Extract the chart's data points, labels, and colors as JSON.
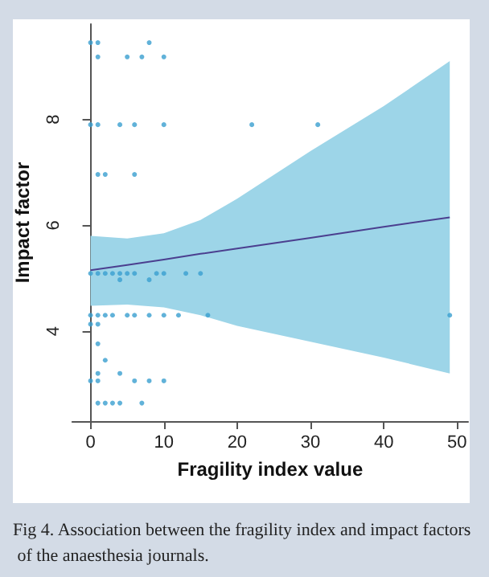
{
  "chart_data": {
    "type": "scatter",
    "xlabel": "Fragility index value",
    "ylabel": "Impact factor",
    "xlim": [
      -2.5,
      51.5
    ],
    "ylim": [
      2.3,
      9.8
    ],
    "xticks": [
      0,
      10,
      20,
      30,
      40,
      50
    ],
    "yticks": [
      4,
      6,
      8
    ],
    "grid": false,
    "marker": "circle",
    "annotations": [
      "Fig 4. Association between the fragility index and impact factors of the anaesthesia journals."
    ],
    "series": [
      {
        "color": "#3a9fd0",
        "x": [
          0,
          1,
          8,
          1,
          5,
          7,
          10,
          0,
          1,
          4,
          6,
          10,
          22,
          31,
          1,
          2,
          6,
          0,
          1,
          2,
          3,
          4,
          5,
          6,
          9,
          10,
          13,
          15,
          4,
          8,
          0,
          1,
          2,
          3,
          5,
          6,
          8,
          10,
          12,
          16,
          49,
          0,
          1,
          1,
          2,
          1,
          4,
          0,
          1,
          6,
          8,
          10,
          1,
          2,
          3,
          4,
          7
        ],
        "values": [
          9.45,
          9.45,
          9.45,
          9.18,
          9.18,
          9.18,
          9.18,
          7.9,
          7.9,
          7.9,
          7.9,
          7.9,
          7.9,
          7.9,
          6.96,
          6.96,
          6.96,
          5.09,
          5.09,
          5.09,
          5.09,
          5.09,
          5.09,
          5.09,
          5.09,
          5.09,
          5.09,
          5.09,
          4.97,
          4.97,
          4.3,
          4.3,
          4.3,
          4.3,
          4.3,
          4.3,
          4.3,
          4.3,
          4.3,
          4.3,
          4.3,
          4.13,
          4.13,
          3.76,
          3.45,
          3.2,
          3.2,
          3.06,
          3.06,
          3.06,
          3.06,
          3.06,
          2.64,
          2.64,
          2.64,
          2.64,
          2.64
        ]
      },
      {
        "type": "line",
        "color": "#4b3f8f",
        "marker": "none",
        "x": [
          0,
          5,
          10,
          15,
          20,
          30,
          40,
          49
        ],
        "values": [
          5.15,
          5.25,
          5.35,
          5.46,
          5.56,
          5.76,
          5.97,
          6.15
        ],
        "lower": [
          4.48,
          4.5,
          4.45,
          4.3,
          4.1,
          3.8,
          3.5,
          3.2
        ],
        "upper": [
          5.8,
          5.75,
          5.85,
          6.1,
          6.5,
          7.4,
          8.25,
          9.1
        ]
      }
    ]
  }
}
